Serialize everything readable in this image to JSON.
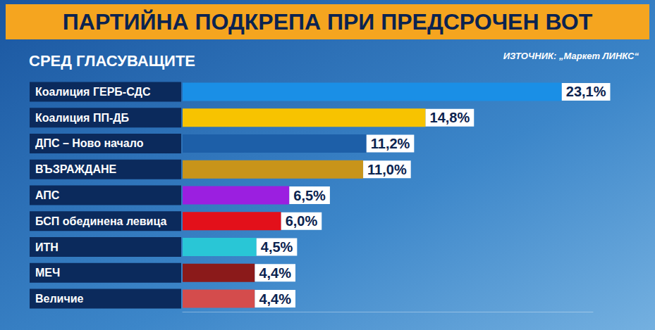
{
  "chart_data": {
    "type": "bar",
    "orientation": "horizontal",
    "title": "ПАРТИЙНА ПОДКРЕПА ПРИ ПРЕДСРОЧЕН ВОТ",
    "subtitle": "СРЕД ГЛАСУВАЩИТЕ",
    "annotations": [
      "ИЗТОЧНИК: „Маркет ЛИНКС“"
    ],
    "categories": [
      "Коалиция ГЕРБ-СДС",
      "Коалиция ПП-ДБ",
      "ДПС – Ново начало",
      "ВЪЗРАЖДАНЕ",
      "АПС",
      "БСП обединена левица",
      "ИТН",
      "МЕЧ",
      "Величие"
    ],
    "values": [
      23.1,
      14.8,
      11.2,
      11.0,
      6.5,
      6.0,
      4.5,
      4.4,
      4.4
    ],
    "value_labels": [
      "23,1%",
      "14,8%",
      "11,2%",
      "11,0%",
      "6,5%",
      "6,0%",
      "4,5%",
      "4,4%",
      "4,4%"
    ],
    "colors": [
      "#1a8fe6",
      "#f7c300",
      "#1d5fa8",
      "#c8941a",
      "#9b1fe0",
      "#e3101a",
      "#29c6d6",
      "#8b1a1a",
      "#d44c4c"
    ],
    "xlim": [
      0,
      25
    ],
    "data_labels": true,
    "tick_labels": "y",
    "grid": false
  }
}
